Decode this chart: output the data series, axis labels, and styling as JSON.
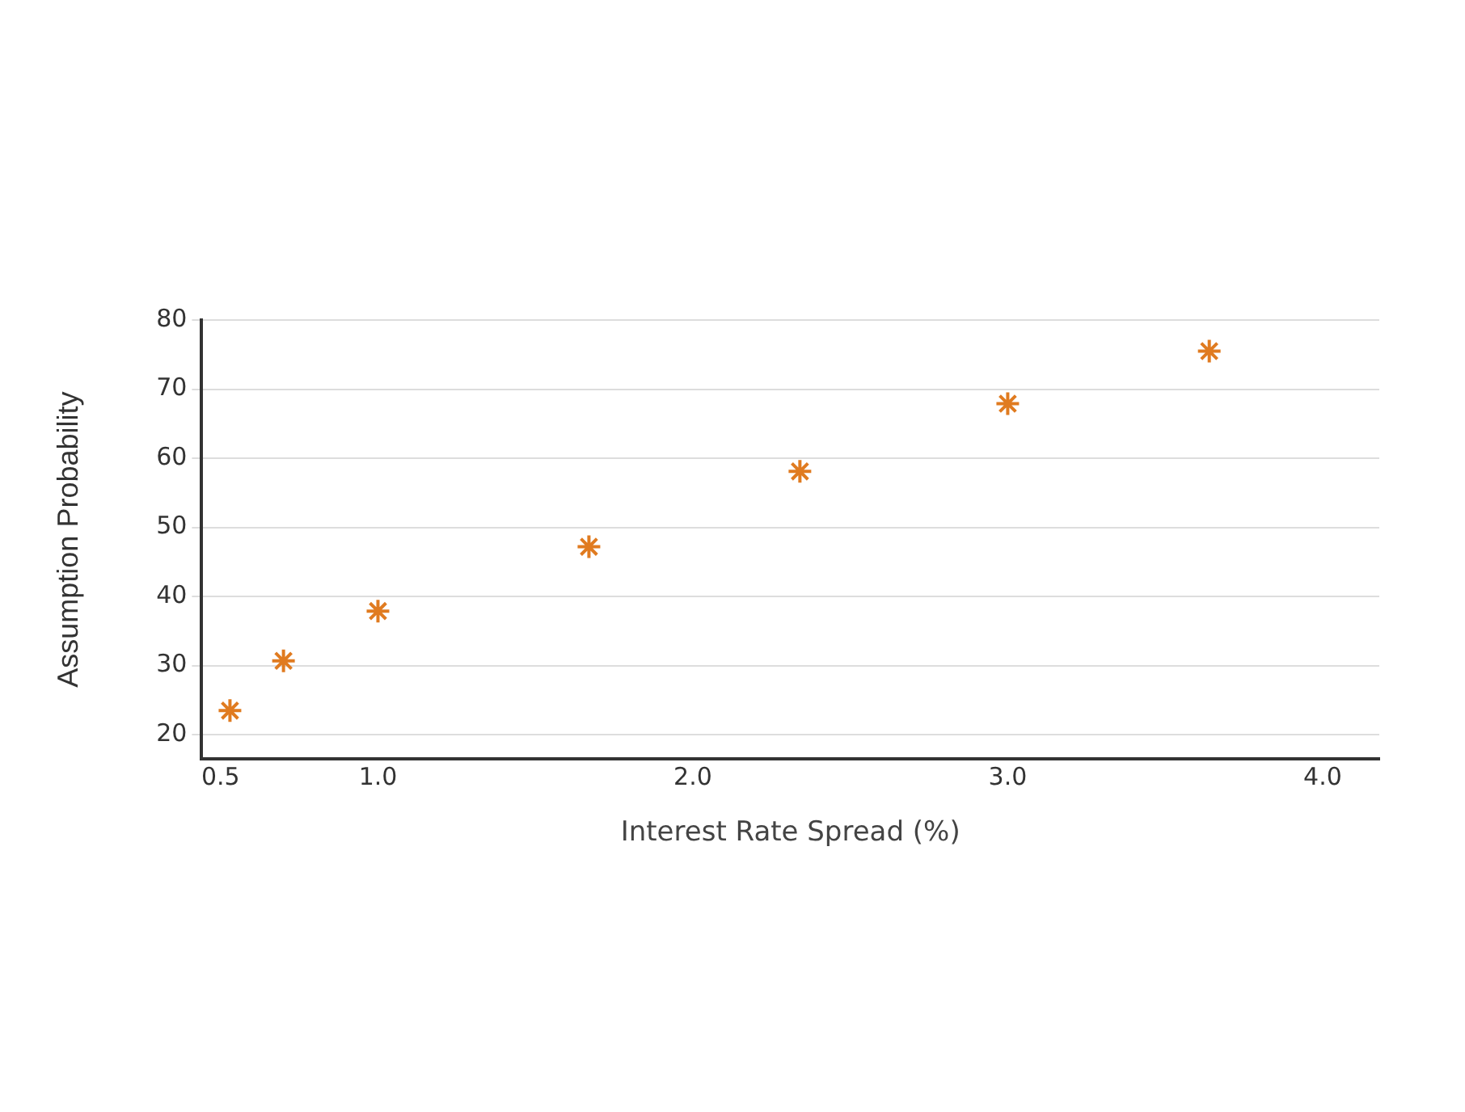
{
  "chart_data": {
    "type": "scatter",
    "xlabel": "Interest Rate Spread (%)",
    "ylabel": "Assumption Probability",
    "x": [
      0.53,
      0.7,
      1.0,
      1.67,
      2.34,
      3.0,
      3.64
    ],
    "series": [
      {
        "color": "#e07b20",
        "values": [
          23.5,
          30.7,
          37.9,
          47.2,
          58.1,
          67.9,
          75.5
        ]
      }
    ],
    "xlim": [
      0.44,
      4.18
    ],
    "xticks": [
      {
        "value": 0.5,
        "label": "0.5"
      },
      {
        "value": 1,
        "label": "1.0"
      },
      {
        "value": 2,
        "label": "2.0"
      },
      {
        "value": 3,
        "label": "3.0"
      },
      {
        "value": 4,
        "label": "4.0"
      }
    ],
    "ylim": [
      16.5,
      80
    ],
    "yticks": [
      20,
      30,
      40,
      50,
      60,
      70,
      80
    ],
    "grid": "y",
    "marker": "cross",
    "legend": false
  }
}
